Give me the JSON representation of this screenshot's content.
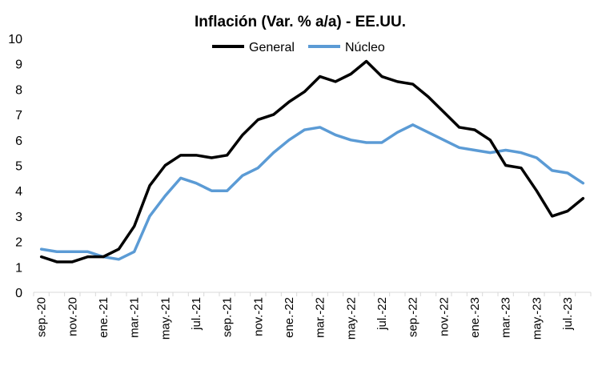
{
  "chart_data": {
    "type": "line",
    "title": "Inflación (Var. % a/a) - EE.UU.",
    "xlabel": "",
    "ylabel": "",
    "ylim": [
      0,
      10
    ],
    "yticks": [
      "0",
      "1",
      "2",
      "3",
      "4",
      "5",
      "6",
      "7",
      "8",
      "9",
      "10"
    ],
    "grid": false,
    "legend_position": "top-center",
    "x": [
      "sep.-20",
      "oct.-20",
      "nov.-20",
      "dic.-20",
      "ene.-21",
      "feb.-21",
      "mar.-21",
      "abr.-21",
      "may.-21",
      "jun.-21",
      "jul.-21",
      "ago.-21",
      "sep.-21",
      "oct.-21",
      "nov.-21",
      "dic.-21",
      "ene.-22",
      "feb.-22",
      "mar.-22",
      "abr.-22",
      "may.-22",
      "jun.-22",
      "jul.-22",
      "ago.-22",
      "sep.-22",
      "oct.-22",
      "nov.-22",
      "dic.-22",
      "ene.-23",
      "feb.-23",
      "mar.-23",
      "abr.-23",
      "may.-23",
      "jun.-23",
      "jul.-23",
      "ago.-23"
    ],
    "xtick_labels": [
      "sep.-20",
      "nov.-20",
      "ene.-21",
      "mar.-21",
      "may.-21",
      "jul.-21",
      "sep.-21",
      "nov.-21",
      "ene.-22",
      "mar.-22",
      "may.-22",
      "jul.-22",
      "sep.-22",
      "nov.-22",
      "ene.-23",
      "mar.-23",
      "may.-23",
      "jul.-23"
    ],
    "series": [
      {
        "name": "General",
        "color": "#000000",
        "values": [
          1.4,
          1.2,
          1.2,
          1.4,
          1.4,
          1.7,
          2.6,
          4.2,
          5.0,
          5.4,
          5.4,
          5.3,
          5.4,
          6.2,
          6.8,
          7.0,
          7.5,
          7.9,
          8.5,
          8.3,
          8.6,
          9.1,
          8.5,
          8.3,
          8.2,
          7.7,
          7.1,
          6.5,
          6.4,
          6.0,
          5.0,
          4.9,
          4.0,
          3.0,
          3.2,
          3.7
        ]
      },
      {
        "name": "Núcleo",
        "color": "#5b9bd5",
        "values": [
          1.7,
          1.6,
          1.6,
          1.6,
          1.4,
          1.3,
          1.6,
          3.0,
          3.8,
          4.5,
          4.3,
          4.0,
          4.0,
          4.6,
          4.9,
          5.5,
          6.0,
          6.4,
          6.5,
          6.2,
          6.0,
          5.9,
          5.9,
          6.3,
          6.6,
          6.3,
          6.0,
          5.7,
          5.6,
          5.5,
          5.6,
          5.5,
          5.3,
          4.8,
          4.7,
          4.3
        ]
      }
    ]
  }
}
